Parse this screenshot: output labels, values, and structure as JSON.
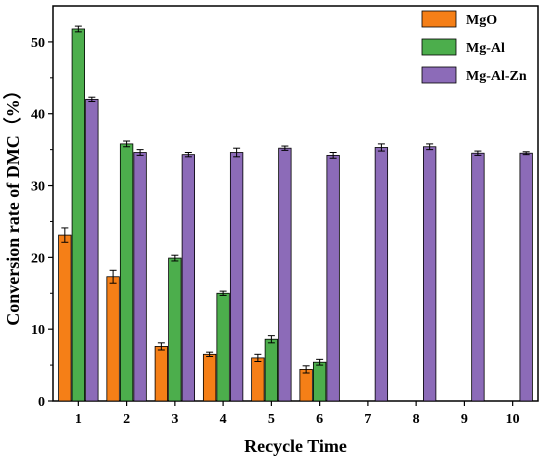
{
  "chart_data": {
    "type": "bar",
    "xlabel": "Recycle Time",
    "ylabel": "Conversion rate of DMC（%）",
    "ylim": [
      0,
      55
    ],
    "yticks": [
      0,
      10,
      20,
      30,
      40,
      50
    ],
    "categories": [
      "1",
      "2",
      "3",
      "4",
      "5",
      "6",
      "7",
      "8",
      "9",
      "10"
    ],
    "legend_position": "top-right",
    "series": [
      {
        "name": "MgO",
        "color": "#f57f17",
        "values": [
          23.1,
          17.3,
          7.6,
          6.5,
          6.0,
          4.4,
          null,
          null,
          null,
          null
        ],
        "errors": [
          1.0,
          0.9,
          0.5,
          0.3,
          0.5,
          0.5,
          null,
          null,
          null,
          null
        ]
      },
      {
        "name": "Mg-Al",
        "color": "#4cae4c",
        "values": [
          51.8,
          35.8,
          19.9,
          15.0,
          8.6,
          5.4,
          null,
          null,
          null,
          null
        ],
        "errors": [
          0.4,
          0.4,
          0.4,
          0.3,
          0.5,
          0.4,
          null,
          null,
          null,
          null
        ]
      },
      {
        "name": "Mg-Al-Zn",
        "color": "#8c6bb8",
        "values": [
          42.0,
          34.6,
          34.3,
          34.6,
          35.2,
          34.2,
          35.3,
          35.4,
          34.5,
          34.5
        ],
        "errors": [
          0.3,
          0.4,
          0.3,
          0.6,
          0.3,
          0.4,
          0.5,
          0.4,
          0.3,
          0.2
        ]
      }
    ]
  }
}
